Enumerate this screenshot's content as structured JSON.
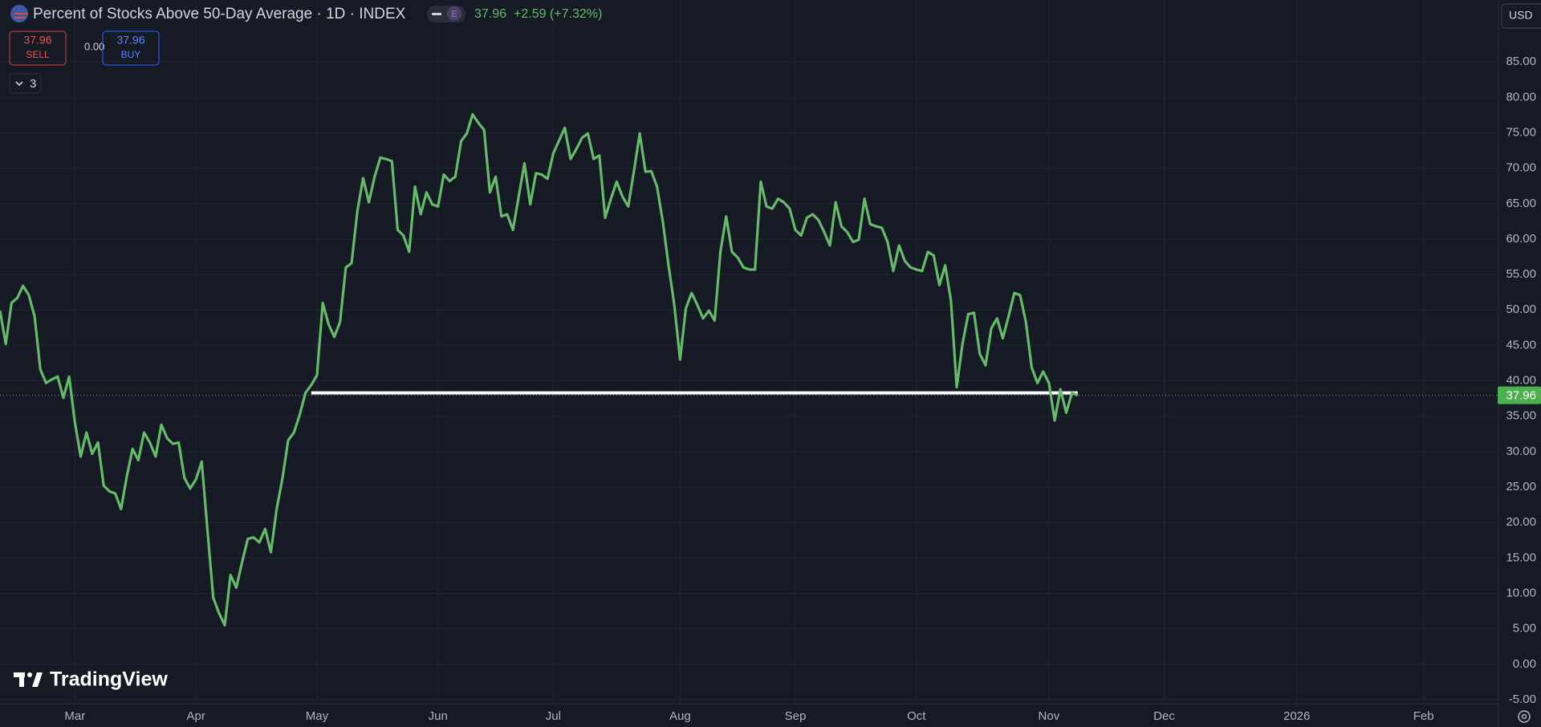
{
  "header": {
    "title": "Percent of Stocks Above 50-Day Average · 1D · INDEX",
    "badge": "E",
    "change": "+2.59 (+7.32%)",
    "sell": "SELL",
    "buy": "BUY",
    "spread": "0.00",
    "indicators": "3",
    "currency": "USD",
    "brand": "TradingView"
  },
  "chart_data": {
    "type": "line",
    "color": "#66bb6a",
    "grid": true,
    "values": [
      49.9,
      45.2,
      51.0,
      51.7,
      53.4,
      52.1,
      49.1,
      41.6,
      39.7,
      40.2,
      40.6,
      37.6,
      40.6,
      34.1,
      29.3,
      32.7,
      29.7,
      31.3,
      25.2,
      24.4,
      24.1,
      21.9,
      26.5,
      30.4,
      28.8,
      32.7,
      31.3,
      29.3,
      33.8,
      31.9,
      31.1,
      31.3,
      26.3,
      24.8,
      26.1,
      28.6,
      18.9,
      9.4,
      7.2,
      5.5,
      12.6,
      10.8,
      14.4,
      17.7,
      17.9,
      17.2,
      19.1,
      15.8,
      21.9,
      26.2,
      31.6,
      32.7,
      35.2,
      38.3,
      39.4,
      40.8,
      51.0,
      48.0,
      46.2,
      48.3,
      56.0,
      56.6,
      63.9,
      68.6,
      65.2,
      68.8,
      71.5,
      71.3,
      71.0,
      61.3,
      60.5,
      58.2,
      67.4,
      63.5,
      66.6,
      64.9,
      64.6,
      69.1,
      68.2,
      68.8,
      73.8,
      74.9,
      77.6,
      76.4,
      75.4,
      66.6,
      68.8,
      63.2,
      63.5,
      61.3,
      66.0,
      70.7,
      64.9,
      69.3,
      69.1,
      68.5,
      72.1,
      73.9,
      75.7,
      71.3,
      72.7,
      74.3,
      74.9,
      71.3,
      71.8,
      63.0,
      65.7,
      68.1,
      66.0,
      64.6,
      69.6,
      74.9,
      69.5,
      69.6,
      67.4,
      62.5,
      56.3,
      50.7,
      43.0,
      50.2,
      52.4,
      50.7,
      48.8,
      49.9,
      48.5,
      58.2,
      63.2,
      58.2,
      57.4,
      56.0,
      55.7,
      55.7,
      68.1,
      64.6,
      64.3,
      65.7,
      65.2,
      64.3,
      61.3,
      60.5,
      63.0,
      63.5,
      62.7,
      61.0,
      59.1,
      65.2,
      61.8,
      61.0,
      59.6,
      59.9,
      65.7,
      62.1,
      61.8,
      61.6,
      59.6,
      55.5,
      59.1,
      56.9,
      56.0,
      55.7,
      55.5,
      58.2,
      57.7,
      53.5,
      56.3,
      51.3,
      39.1,
      45.2,
      49.4,
      49.6,
      43.8,
      42.2,
      47.4,
      48.8,
      46.0,
      49.1,
      52.4,
      52.1,
      48.3,
      41.9,
      39.7,
      41.3,
      39.7,
      34.4,
      38.8,
      35.5,
      38.3,
      37.96
    ],
    "xlim": [
      0,
      260
    ],
    "xticks": [
      {
        "value": 13,
        "label": "Mar"
      },
      {
        "value": 34,
        "label": "Apr"
      },
      {
        "value": 55,
        "label": "May"
      },
      {
        "value": 76,
        "label": "Jun"
      },
      {
        "value": 96,
        "label": "Jul"
      },
      {
        "value": 118,
        "label": "Aug"
      },
      {
        "value": 138,
        "label": "Sep"
      },
      {
        "value": 159,
        "label": "Oct"
      },
      {
        "value": 182,
        "label": "Nov"
      },
      {
        "value": 202,
        "label": "Dec"
      },
      {
        "value": 225,
        "label": "2026"
      },
      {
        "value": 247,
        "label": "Feb"
      }
    ],
    "ylim": [
      -5.57,
      93.74
    ],
    "yticks": [
      {
        "value": -5,
        "label": "-5.00"
      },
      {
        "value": 0,
        "label": "0.00"
      },
      {
        "value": 5,
        "label": "5.00"
      },
      {
        "value": 10,
        "label": "10.00"
      },
      {
        "value": 15,
        "label": "15.00"
      },
      {
        "value": 20,
        "label": "20.00"
      },
      {
        "value": 25,
        "label": "25.00"
      },
      {
        "value": 30,
        "label": "30.00"
      },
      {
        "value": 35,
        "label": "35.00"
      },
      {
        "value": 40,
        "label": "40.00"
      },
      {
        "value": 45,
        "label": "45.00"
      },
      {
        "value": 50,
        "label": "50.00"
      },
      {
        "value": 55,
        "label": "55.00"
      },
      {
        "value": 60,
        "label": "60.00"
      },
      {
        "value": 65,
        "label": "65.00"
      },
      {
        "value": 70,
        "label": "70.00"
      },
      {
        "value": 75,
        "label": "75.00"
      },
      {
        "value": 80,
        "label": "80.00"
      },
      {
        "value": 85,
        "label": "85.00"
      }
    ],
    "levels": [
      {
        "value": 38.3,
        "from": 54,
        "to": 187,
        "color": "#ffffff"
      }
    ]
  }
}
